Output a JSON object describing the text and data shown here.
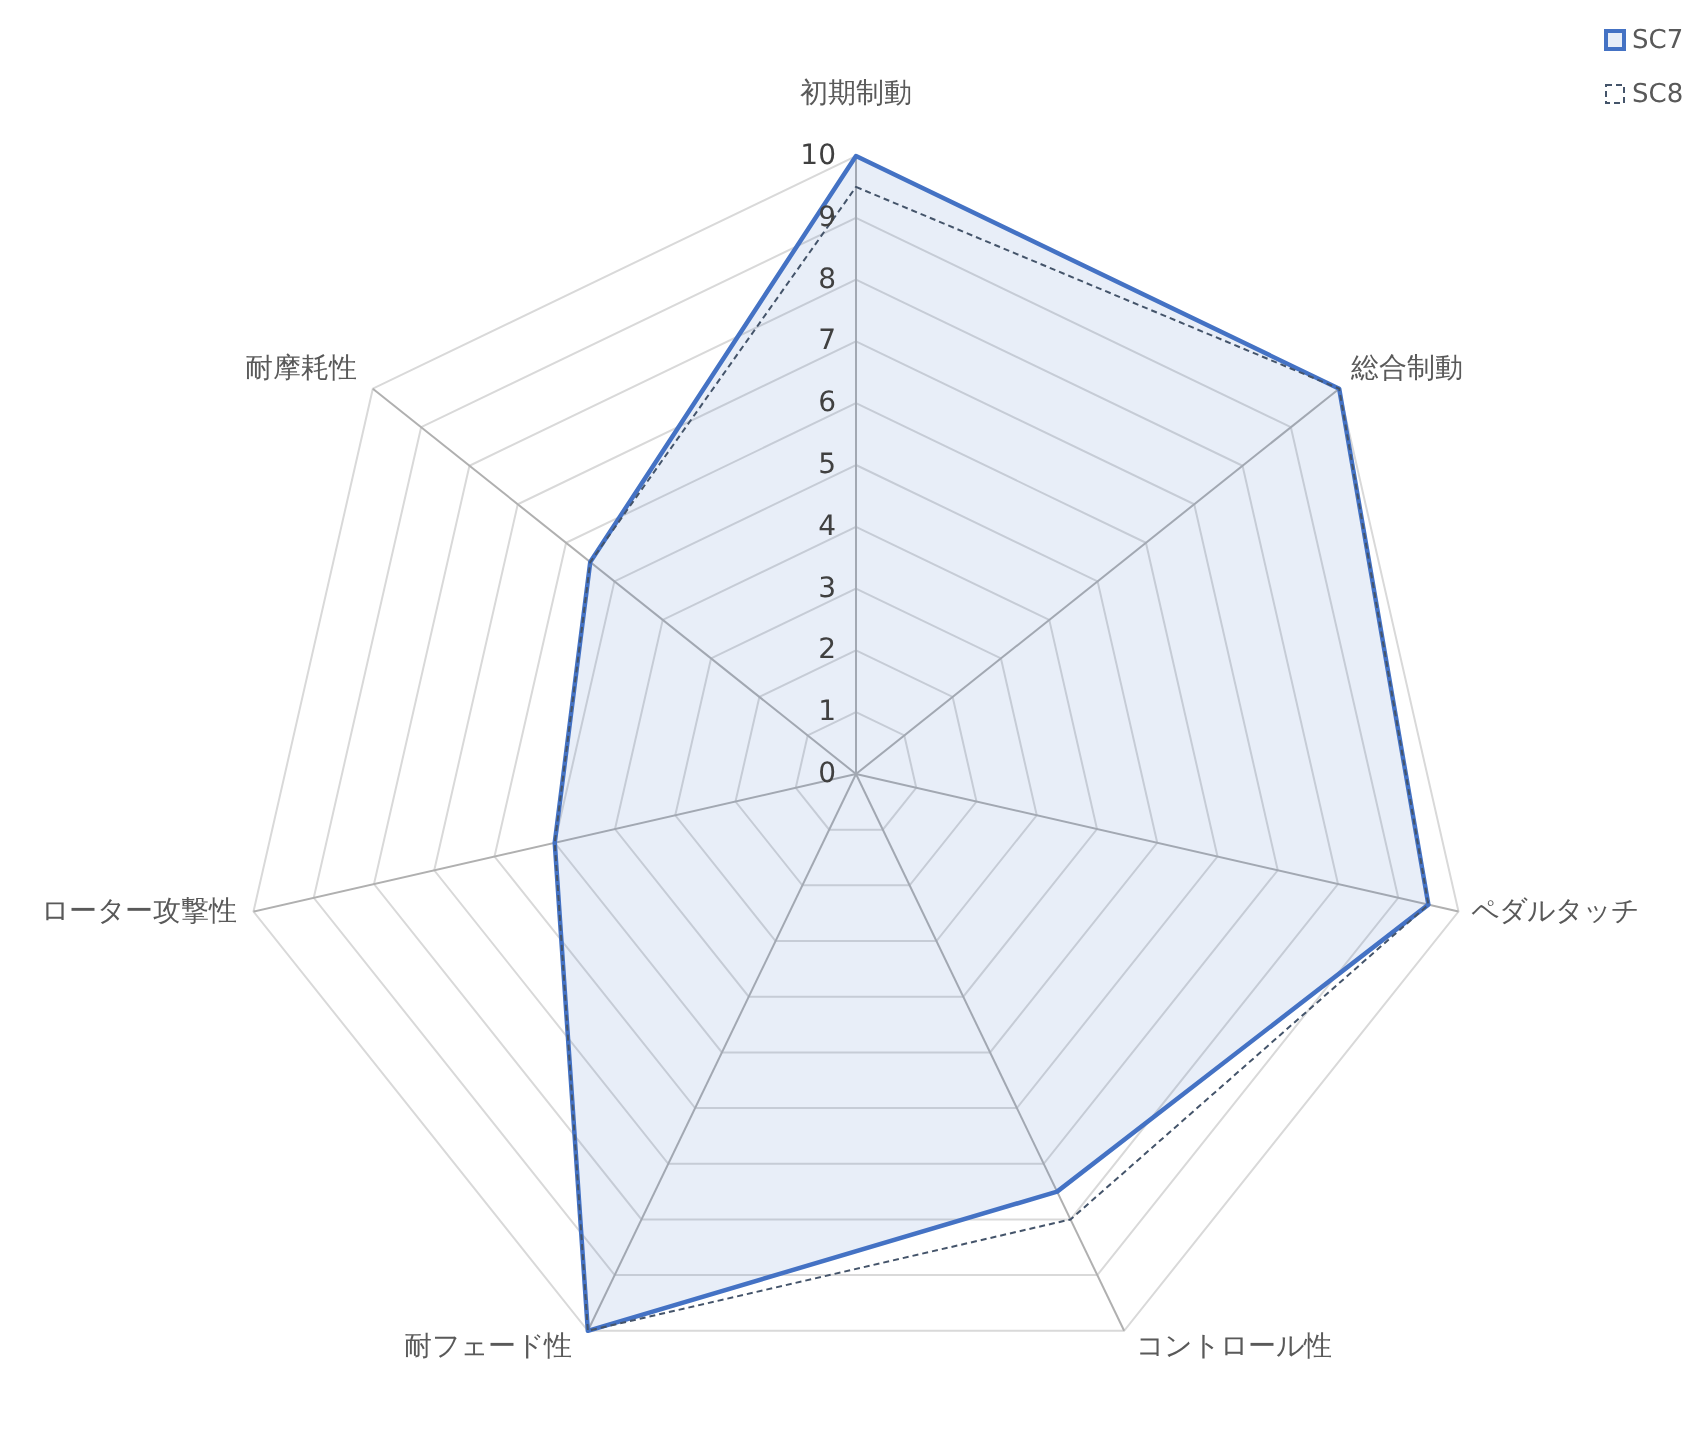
{
  "chart_data": {
    "type": "radar",
    "categories": [
      "初期制動",
      "総合制動",
      "ペダルタッチ",
      "コントロール性",
      "耐フェード性",
      "ローター攻撃性",
      "耐摩耗性"
    ],
    "series": [
      {
        "name": "SC7",
        "type": "area",
        "color": "#4472c4",
        "values": [
          10,
          10,
          9.5,
          7.5,
          10,
          5,
          5.5
        ]
      },
      {
        "name": "SC8",
        "color": "#44546a",
        "line_style": "dashed",
        "values": [
          9.5,
          10,
          9.5,
          8,
          10,
          5,
          5.5
        ]
      }
    ],
    "ylim": [
      0,
      10
    ],
    "yticks": [
      0,
      1,
      2,
      3,
      4,
      5,
      6,
      7,
      8,
      9,
      10
    ],
    "grid": true,
    "legend": "top right"
  }
}
